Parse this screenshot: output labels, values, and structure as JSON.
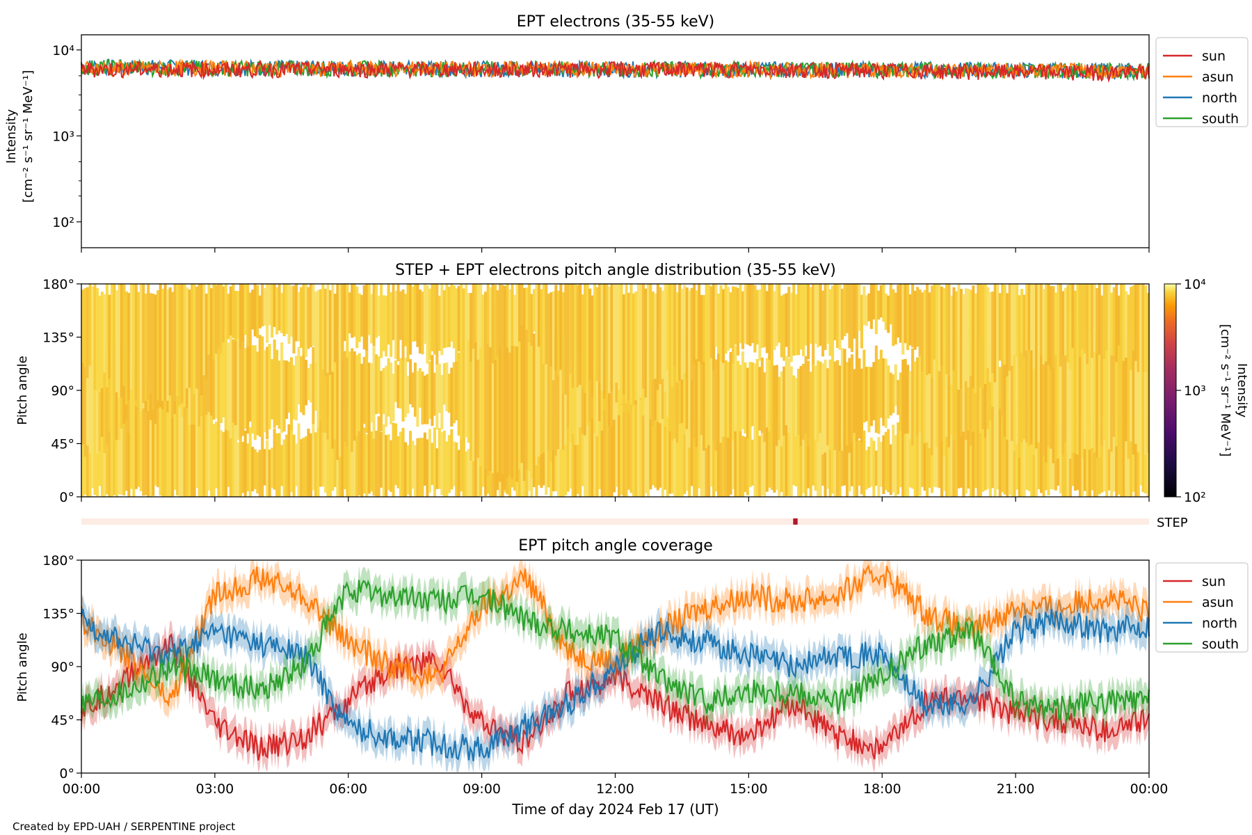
{
  "figure": {
    "credit": "Created by EPD-UAH / SERPENTINE project",
    "xlabel": "Time of day 2024 Feb 17 (UT)",
    "x_ticks": [
      "00:00",
      "03:00",
      "06:00",
      "09:00",
      "12:00",
      "15:00",
      "18:00",
      "21:00",
      "00:00"
    ]
  },
  "colors": {
    "sun": "#d62728",
    "asun": "#ff7f0e",
    "north": "#1f77b4",
    "south": "#2ca02c"
  },
  "chart_data": [
    {
      "type": "line",
      "title": "EPT electrons (35-55 keV)",
      "ylabel_lines": [
        "Intensity",
        "[cm⁻² s⁻¹ sr⁻¹ MeV⁻¹]"
      ],
      "y_scale": "log",
      "ylim": [
        50,
        15000
      ],
      "y_ticks": [
        {
          "value": 100,
          "label": "10²"
        },
        {
          "value": 1000,
          "label": "10³"
        },
        {
          "value": 10000,
          "label": "10⁴"
        }
      ],
      "x_range_hours": [
        0,
        24
      ],
      "legend": "outside-right",
      "series": [
        {
          "name": "sun",
          "color_key": "sun",
          "x_hours": [
            0,
            3,
            6,
            9,
            12,
            15,
            18,
            21,
            24
          ],
          "values": [
            6000,
            6000,
            6000,
            6000,
            6000,
            6000,
            5800,
            5600,
            5500
          ]
        },
        {
          "name": "asun",
          "color_key": "asun",
          "x_hours": [
            0,
            3,
            6,
            9,
            12,
            15,
            18,
            21,
            24
          ],
          "values": [
            6200,
            6200,
            6100,
            6100,
            6100,
            6000,
            5900,
            5800,
            5700
          ]
        },
        {
          "name": "north",
          "color_key": "north",
          "x_hours": [
            0,
            3,
            6,
            9,
            12,
            15,
            18,
            21,
            24
          ],
          "values": [
            6500,
            6300,
            6200,
            6100,
            6100,
            6000,
            6000,
            5900,
            5800
          ]
        },
        {
          "name": "south",
          "color_key": "south",
          "x_hours": [
            0,
            3,
            6,
            9,
            12,
            15,
            18,
            21,
            24
          ],
          "values": [
            6400,
            6200,
            6200,
            6100,
            6100,
            6000,
            6000,
            5900,
            5800
          ]
        }
      ]
    },
    {
      "type": "heatmap",
      "title": "STEP + EPT electrons pitch angle distribution (35-55 keV)",
      "ylabel": "Pitch angle",
      "ylim": [
        0,
        180
      ],
      "y_ticks": [
        {
          "value": 0,
          "label": "0°"
        },
        {
          "value": 45,
          "label": "45°"
        },
        {
          "value": 90,
          "label": "90°"
        },
        {
          "value": 135,
          "label": "135°"
        },
        {
          "value": 180,
          "label": "180°"
        }
      ],
      "x_range_hours": [
        0,
        24
      ],
      "colorbar": {
        "label_lines": [
          "Intensity",
          "[cm⁻² s⁻¹ sr⁻¹ MeV⁻¹]"
        ],
        "scale": "log",
        "range": [
          100,
          10000
        ],
        "ticks": [
          {
            "value": 100,
            "label": "10²"
          },
          {
            "value": 1000,
            "label": "10³"
          },
          {
            "value": 10000,
            "label": "10⁴"
          }
        ],
        "colormap": "inferno"
      },
      "intensity_value": 6000,
      "step_strip": {
        "label": "STEP",
        "event_x_hours": [
          16.0,
          16.1
        ],
        "fill": "#fdece4",
        "event_color": "#b2182b"
      }
    },
    {
      "type": "line",
      "title": "EPT pitch angle coverage",
      "ylabel": "Pitch angle",
      "ylim": [
        0,
        180
      ],
      "y_ticks": [
        {
          "value": 0,
          "label": "0°"
        },
        {
          "value": 45,
          "label": "45°"
        },
        {
          "value": 90,
          "label": "90°"
        },
        {
          "value": 135,
          "label": "135°"
        },
        {
          "value": 180,
          "label": "180°"
        }
      ],
      "x_range_hours": [
        0,
        24
      ],
      "legend": "outside-right",
      "series": [
        {
          "name": "sun",
          "color_key": "sun",
          "x_hours": [
            0,
            1,
            2,
            3,
            4,
            5,
            6,
            7,
            8,
            9,
            10,
            11,
            12,
            13,
            14,
            15,
            16,
            17,
            18,
            19,
            20,
            21,
            22,
            23,
            24
          ],
          "values": [
            50,
            80,
            110,
            40,
            20,
            30,
            60,
            90,
            95,
            40,
            25,
            70,
            80,
            60,
            40,
            30,
            60,
            30,
            20,
            60,
            65,
            50,
            45,
            35,
            45
          ]
        },
        {
          "name": "asun",
          "color_key": "asun",
          "x_hours": [
            0,
            1,
            2,
            3,
            4,
            5,
            6,
            7,
            8,
            9,
            10,
            11,
            12,
            13,
            14,
            15,
            16,
            17,
            18,
            19,
            20,
            21,
            22,
            23,
            24
          ],
          "values": [
            130,
            100,
            60,
            150,
            165,
            150,
            110,
            90,
            80,
            140,
            165,
            100,
            95,
            120,
            140,
            150,
            145,
            150,
            170,
            135,
            120,
            140,
            140,
            150,
            135
          ]
        },
        {
          "name": "north",
          "color_key": "north",
          "x_hours": [
            0,
            1,
            2,
            3,
            4,
            5,
            6,
            7,
            8,
            9,
            10,
            11,
            12,
            13,
            14,
            15,
            16,
            17,
            18,
            19,
            20,
            21,
            22,
            23,
            24
          ],
          "values": [
            130,
            110,
            100,
            120,
            110,
            100,
            40,
            30,
            25,
            20,
            40,
            60,
            90,
            120,
            110,
            100,
            90,
            100,
            100,
            55,
            60,
            120,
            130,
            120,
            125
          ]
        },
        {
          "name": "south",
          "color_key": "south",
          "x_hours": [
            0,
            1,
            2,
            3,
            4,
            5,
            6,
            7,
            8,
            9,
            10,
            11,
            12,
            13,
            14,
            15,
            16,
            17,
            18,
            19,
            20,
            21,
            22,
            23,
            24
          ],
          "values": [
            60,
            70,
            90,
            80,
            70,
            90,
            155,
            150,
            145,
            150,
            130,
            120,
            115,
            80,
            60,
            70,
            70,
            60,
            80,
            110,
            120,
            60,
            55,
            60,
            60
          ]
        }
      ]
    }
  ]
}
